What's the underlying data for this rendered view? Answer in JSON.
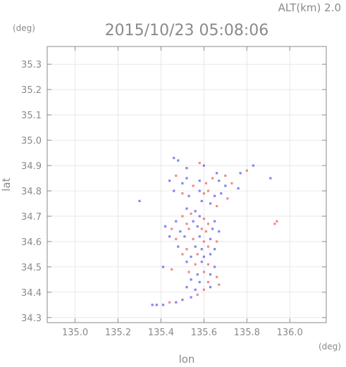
{
  "chart_data": {
    "type": "scatter",
    "title": "2015/10/23 05:08:06",
    "altitude_label": "ALT(km) 2.0",
    "xlabel": "lon",
    "ylabel": "lat",
    "x_unit": "(deg)",
    "y_unit": "(deg)",
    "xlim": [
      134.87,
      136.17
    ],
    "ylim": [
      34.28,
      35.37
    ],
    "x_ticks": [
      "135.0",
      "135.2",
      "135.4",
      "135.6",
      "135.8",
      "136.0"
    ],
    "x_tick_values": [
      135.0,
      135.2,
      135.4,
      135.6,
      135.8,
      136.0
    ],
    "y_ticks": [
      "34.3",
      "34.4",
      "34.5",
      "34.6",
      "34.7",
      "34.8",
      "34.9",
      "35.0",
      "35.1",
      "35.2",
      "35.3"
    ],
    "y_tick_values": [
      34.3,
      34.4,
      34.5,
      34.6,
      34.7,
      34.8,
      34.9,
      35.0,
      35.1,
      35.2,
      35.3
    ],
    "colors": {
      "positive": "#ee7777",
      "negative": "#6f6fee",
      "frame": "#8a8a8a",
      "grid": "#d9d9d9"
    },
    "points": [
      {
        "lon": 135.46,
        "lat": 34.93,
        "sign": "neg"
      },
      {
        "lon": 135.48,
        "lat": 34.92,
        "sign": "neg"
      },
      {
        "lon": 135.52,
        "lat": 34.89,
        "sign": "neg"
      },
      {
        "lon": 135.58,
        "lat": 34.91,
        "sign": "pos"
      },
      {
        "lon": 135.6,
        "lat": 34.9,
        "sign": "neg"
      },
      {
        "lon": 135.66,
        "lat": 34.87,
        "sign": "neg"
      },
      {
        "lon": 135.7,
        "lat": 34.86,
        "sign": "pos"
      },
      {
        "lon": 135.77,
        "lat": 34.87,
        "sign": "neg"
      },
      {
        "lon": 135.8,
        "lat": 34.88,
        "sign": "pos"
      },
      {
        "lon": 135.83,
        "lat": 34.9,
        "sign": "neg"
      },
      {
        "lon": 135.91,
        "lat": 34.85,
        "sign": "neg"
      },
      {
        "lon": 135.44,
        "lat": 34.84,
        "sign": "neg"
      },
      {
        "lon": 135.47,
        "lat": 34.86,
        "sign": "pos"
      },
      {
        "lon": 135.5,
        "lat": 34.83,
        "sign": "neg"
      },
      {
        "lon": 135.52,
        "lat": 34.85,
        "sign": "neg"
      },
      {
        "lon": 135.55,
        "lat": 34.82,
        "sign": "pos"
      },
      {
        "lon": 135.58,
        "lat": 34.84,
        "sign": "neg"
      },
      {
        "lon": 135.61,
        "lat": 34.83,
        "sign": "pos"
      },
      {
        "lon": 135.64,
        "lat": 34.85,
        "sign": "pos"
      },
      {
        "lon": 135.67,
        "lat": 34.84,
        "sign": "neg"
      },
      {
        "lon": 135.7,
        "lat": 34.82,
        "sign": "neg"
      },
      {
        "lon": 135.73,
        "lat": 34.83,
        "sign": "pos"
      },
      {
        "lon": 135.76,
        "lat": 34.81,
        "sign": "neg"
      },
      {
        "lon": 135.46,
        "lat": 34.8,
        "sign": "neg"
      },
      {
        "lon": 135.5,
        "lat": 34.79,
        "sign": "pos"
      },
      {
        "lon": 135.53,
        "lat": 34.78,
        "sign": "neg"
      },
      {
        "lon": 135.58,
        "lat": 34.8,
        "sign": "neg"
      },
      {
        "lon": 135.6,
        "lat": 34.79,
        "sign": "pos"
      },
      {
        "lon": 135.62,
        "lat": 34.8,
        "sign": "pos"
      },
      {
        "lon": 135.65,
        "lat": 34.78,
        "sign": "neg"
      },
      {
        "lon": 135.68,
        "lat": 34.79,
        "sign": "neg"
      },
      {
        "lon": 135.71,
        "lat": 34.77,
        "sign": "pos"
      },
      {
        "lon": 135.59,
        "lat": 34.76,
        "sign": "neg"
      },
      {
        "lon": 135.63,
        "lat": 34.75,
        "sign": "neg"
      },
      {
        "lon": 135.66,
        "lat": 34.74,
        "sign": "pos"
      },
      {
        "lon": 135.3,
        "lat": 34.76,
        "sign": "neg"
      },
      {
        "lon": 135.52,
        "lat": 34.73,
        "sign": "neg"
      },
      {
        "lon": 135.54,
        "lat": 34.71,
        "sign": "pos"
      },
      {
        "lon": 135.56,
        "lat": 34.72,
        "sign": "neg"
      },
      {
        "lon": 135.5,
        "lat": 34.7,
        "sign": "pos"
      },
      {
        "lon": 135.58,
        "lat": 34.7,
        "sign": "neg"
      },
      {
        "lon": 135.6,
        "lat": 34.69,
        "sign": "pos"
      },
      {
        "lon": 135.47,
        "lat": 34.68,
        "sign": "neg"
      },
      {
        "lon": 135.52,
        "lat": 34.67,
        "sign": "pos"
      },
      {
        "lon": 135.55,
        "lat": 34.68,
        "sign": "neg"
      },
      {
        "lon": 135.62,
        "lat": 34.67,
        "sign": "pos"
      },
      {
        "lon": 135.65,
        "lat": 34.68,
        "sign": "neg"
      },
      {
        "lon": 135.42,
        "lat": 34.66,
        "sign": "neg"
      },
      {
        "lon": 135.45,
        "lat": 34.65,
        "sign": "pos"
      },
      {
        "lon": 135.49,
        "lat": 34.64,
        "sign": "neg"
      },
      {
        "lon": 135.53,
        "lat": 34.65,
        "sign": "pos"
      },
      {
        "lon": 135.57,
        "lat": 34.66,
        "sign": "neg"
      },
      {
        "lon": 135.59,
        "lat": 34.65,
        "sign": "pos"
      },
      {
        "lon": 135.61,
        "lat": 34.64,
        "sign": "pos"
      },
      {
        "lon": 135.64,
        "lat": 34.65,
        "sign": "neg"
      },
      {
        "lon": 135.67,
        "lat": 34.64,
        "sign": "neg"
      },
      {
        "lon": 135.44,
        "lat": 34.62,
        "sign": "neg"
      },
      {
        "lon": 135.47,
        "lat": 34.61,
        "sign": "pos"
      },
      {
        "lon": 135.51,
        "lat": 34.62,
        "sign": "neg"
      },
      {
        "lon": 135.55,
        "lat": 34.61,
        "sign": "pos"
      },
      {
        "lon": 135.58,
        "lat": 34.62,
        "sign": "neg"
      },
      {
        "lon": 135.6,
        "lat": 34.6,
        "sign": "pos"
      },
      {
        "lon": 135.63,
        "lat": 34.61,
        "sign": "neg"
      },
      {
        "lon": 135.66,
        "lat": 34.6,
        "sign": "pos"
      },
      {
        "lon": 135.48,
        "lat": 34.58,
        "sign": "neg"
      },
      {
        "lon": 135.52,
        "lat": 34.57,
        "sign": "pos"
      },
      {
        "lon": 135.56,
        "lat": 34.58,
        "sign": "neg"
      },
      {
        "lon": 135.59,
        "lat": 34.57,
        "sign": "neg"
      },
      {
        "lon": 135.62,
        "lat": 34.58,
        "sign": "pos"
      },
      {
        "lon": 135.65,
        "lat": 34.57,
        "sign": "neg"
      },
      {
        "lon": 135.5,
        "lat": 34.55,
        "sign": "pos"
      },
      {
        "lon": 135.54,
        "lat": 34.54,
        "sign": "neg"
      },
      {
        "lon": 135.57,
        "lat": 34.55,
        "sign": "pos"
      },
      {
        "lon": 135.6,
        "lat": 34.54,
        "sign": "neg"
      },
      {
        "lon": 135.63,
        "lat": 34.55,
        "sign": "neg"
      },
      {
        "lon": 135.52,
        "lat": 34.52,
        "sign": "neg"
      },
      {
        "lon": 135.56,
        "lat": 34.51,
        "sign": "pos"
      },
      {
        "lon": 135.59,
        "lat": 34.52,
        "sign": "neg"
      },
      {
        "lon": 135.62,
        "lat": 34.51,
        "sign": "pos"
      },
      {
        "lon": 135.65,
        "lat": 34.5,
        "sign": "neg"
      },
      {
        "lon": 135.41,
        "lat": 34.5,
        "sign": "neg"
      },
      {
        "lon": 135.45,
        "lat": 34.49,
        "sign": "pos"
      },
      {
        "lon": 135.53,
        "lat": 34.48,
        "sign": "pos"
      },
      {
        "lon": 135.57,
        "lat": 34.47,
        "sign": "neg"
      },
      {
        "lon": 135.6,
        "lat": 34.48,
        "sign": "pos"
      },
      {
        "lon": 135.63,
        "lat": 34.47,
        "sign": "neg"
      },
      {
        "lon": 135.66,
        "lat": 34.46,
        "sign": "pos"
      },
      {
        "lon": 135.54,
        "lat": 34.45,
        "sign": "neg"
      },
      {
        "lon": 135.58,
        "lat": 34.44,
        "sign": "neg"
      },
      {
        "lon": 135.62,
        "lat": 34.44,
        "sign": "pos"
      },
      {
        "lon": 135.67,
        "lat": 34.43,
        "sign": "pos"
      },
      {
        "lon": 135.52,
        "lat": 34.42,
        "sign": "neg"
      },
      {
        "lon": 135.56,
        "lat": 34.41,
        "sign": "neg"
      },
      {
        "lon": 135.6,
        "lat": 34.41,
        "sign": "pos"
      },
      {
        "lon": 135.63,
        "lat": 34.42,
        "sign": "neg"
      },
      {
        "lon": 135.57,
        "lat": 34.39,
        "sign": "pos"
      },
      {
        "lon": 135.54,
        "lat": 34.38,
        "sign": "neg"
      },
      {
        "lon": 135.5,
        "lat": 34.37,
        "sign": "neg"
      },
      {
        "lon": 135.47,
        "lat": 34.36,
        "sign": "neg"
      },
      {
        "lon": 135.44,
        "lat": 34.36,
        "sign": "pos"
      },
      {
        "lon": 135.41,
        "lat": 34.35,
        "sign": "neg"
      },
      {
        "lon": 135.38,
        "lat": 34.35,
        "sign": "neg"
      },
      {
        "lon": 135.36,
        "lat": 34.35,
        "sign": "neg"
      },
      {
        "lon": 135.93,
        "lat": 34.67,
        "sign": "pos"
      },
      {
        "lon": 135.94,
        "lat": 34.68,
        "sign": "pos"
      }
    ]
  }
}
